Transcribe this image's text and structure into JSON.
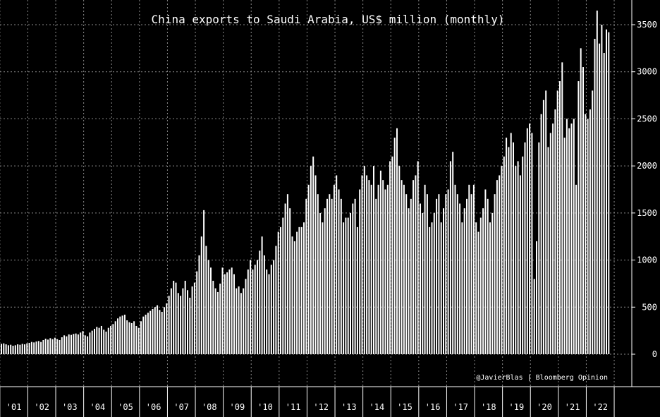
{
  "chart_data": {
    "type": "bar",
    "title": "China exports to Saudi Arabia, US$ million (monthly)",
    "credit": "@JavierBlas | Bloomberg Opinion",
    "xlabel": "",
    "ylabel": "",
    "ylim": [
      -250,
      3700
    ],
    "yticks": [
      0,
      500,
      1000,
      1500,
      2000,
      2500,
      3000,
      3500
    ],
    "year_labels": [
      "'01",
      "'02",
      "'03",
      "'04",
      "'05",
      "'06",
      "'07",
      "'08",
      "'09",
      "'10",
      "'11",
      "'12",
      "'13",
      "'14",
      "'15",
      "'16",
      "'17",
      "'18",
      "'19",
      "'20",
      "'21",
      "'22"
    ],
    "grid": true,
    "legend": "none",
    "series": [
      {
        "values": [
          110,
          115,
          105,
          95,
          100,
          90,
          95,
          105,
          100,
          110,
          105,
          115,
          120,
          130,
          125,
          135,
          140,
          130,
          150,
          165,
          155,
          170,
          160,
          175,
          160,
          150,
          180,
          200,
          190,
          210,
          205,
          215,
          220,
          210,
          230,
          245,
          200,
          190,
          230,
          250,
          270,
          290,
          280,
          300,
          260,
          240,
          280,
          300,
          320,
          350,
          380,
          400,
          410,
          420,
          360,
          340,
          330,
          350,
          300,
          280,
          350,
          400,
          420,
          440,
          460,
          480,
          500,
          520,
          470,
          450,
          500,
          540,
          620,
          700,
          780,
          760,
          650,
          620,
          700,
          780,
          680,
          600,
          720,
          760,
          880,
          1050,
          1250,
          1530,
          1150,
          1000,
          920,
          780,
          700,
          660,
          750,
          920,
          850,
          870,
          900,
          920,
          850,
          700,
          720,
          650,
          700,
          800,
          900,
          1000,
          900,
          950,
          1000,
          1100,
          1250,
          1050,
          900,
          850,
          950,
          1000,
          1150,
          1300,
          1350,
          1450,
          1600,
          1700,
          1550,
          1250,
          1200,
          1300,
          1350,
          1350,
          1400,
          1650,
          1800,
          2000,
          2100,
          1900,
          1700,
          1500,
          1400,
          1550,
          1650,
          1700,
          1650,
          1800,
          1900,
          1750,
          1650,
          1400,
          1450,
          1450,
          1500,
          1600,
          1650,
          1350,
          1750,
          1900,
          2000,
          1900,
          1850,
          1800,
          2000,
          1650,
          1800,
          1950,
          1850,
          1750,
          1800,
          2050,
          2100,
          2300,
          2400,
          2000,
          1850,
          1800,
          1700,
          1550,
          1650,
          1850,
          1900,
          2050,
          1600,
          1500,
          1800,
          1700,
          1350,
          1400,
          1500,
          1650,
          1700,
          1400,
          1550,
          1700,
          1750,
          2050,
          2150,
          1800,
          1700,
          1600,
          1400,
          1550,
          1650,
          1800,
          1700,
          1800,
          1400,
          1300,
          1450,
          1550,
          1750,
          1650,
          1400,
          1500,
          1700,
          1850,
          1900,
          2000,
          2100,
          2300,
          2200,
          2350,
          2250,
          2000,
          2050,
          1900,
          2100,
          2250,
          2400,
          2450,
          2350,
          800,
          1200,
          2250,
          2550,
          2700,
          2800,
          2200,
          2350,
          2450,
          2600,
          2800,
          2900,
          3100,
          2300,
          2500,
          2400,
          2450,
          2500,
          1800,
          2900,
          3250,
          3050,
          2550,
          2500,
          2600,
          2800,
          3350,
          3650,
          3300,
          3500,
          3200,
          3450,
          3420
        ]
      }
    ]
  }
}
